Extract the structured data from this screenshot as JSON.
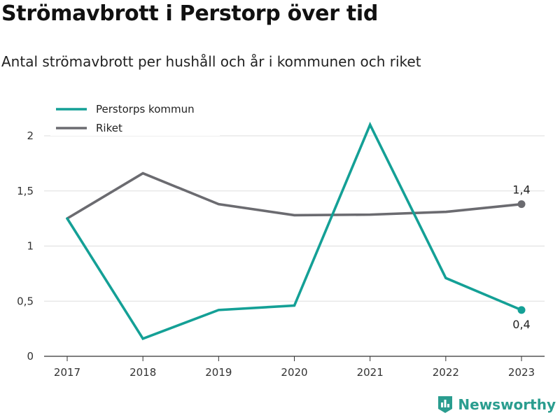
{
  "colors": {
    "perstorp": "#14a096",
    "riket": "#6b6b70",
    "grid": "#dddddd",
    "axis": "#333333",
    "logo": "#2a9d8f"
  },
  "chart_data": {
    "type": "line",
    "title": "Strömavbrott i Perstorp över tid",
    "subtitle": "Antal strömavbrott per hushåll och år i kommunen och riket",
    "categories": [
      "2017",
      "2018",
      "2019",
      "2020",
      "2021",
      "2022",
      "2023"
    ],
    "ylim": [
      0,
      2.2
    ],
    "yticks": [
      0,
      0.5,
      1,
      1.5,
      2
    ],
    "ytick_labels": [
      "0",
      "0,5",
      "1",
      "1,5",
      "2"
    ],
    "grid": true,
    "legend_position": "top-left",
    "series": [
      {
        "name": "Perstorps kommun",
        "values": [
          1.25,
          0.16,
          0.42,
          0.46,
          2.1,
          0.71,
          0.42
        ],
        "end_label": "0,4"
      },
      {
        "name": "Riket",
        "values": [
          1.25,
          1.66,
          1.38,
          1.28,
          1.285,
          1.31,
          1.38
        ],
        "end_label": "1,4"
      }
    ]
  },
  "branding": {
    "logo_text": "Newsworthy",
    "logo_icon": "bar-chart-badge-icon"
  }
}
